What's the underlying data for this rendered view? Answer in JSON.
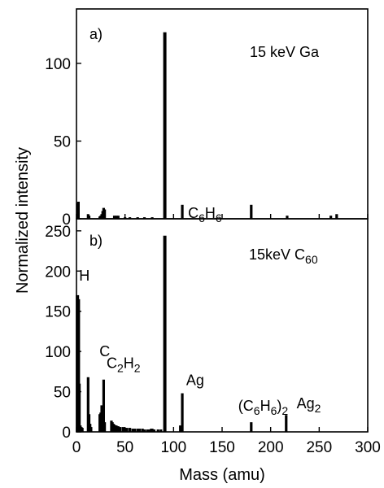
{
  "chart_data": [
    {
      "type": "bar",
      "panel_label": "a)",
      "annotation": "15 keV Ga",
      "xlabel": "Mass (amu)",
      "ylabel": "Normalized intensity",
      "xlim": [
        0,
        300
      ],
      "ylim": [
        0,
        135
      ],
      "yticks": [
        0,
        50,
        100
      ],
      "xticks": [
        0,
        50,
        100,
        150,
        200,
        250,
        300
      ],
      "grid": false,
      "x": [
        1,
        2,
        12,
        13,
        24,
        25,
        26,
        27,
        28,
        29,
        39,
        41,
        43,
        50,
        55,
        63,
        70,
        78,
        91,
        109,
        180,
        217,
        262,
        268
      ],
      "values": [
        10,
        11,
        3,
        2,
        1.5,
        2,
        3,
        5,
        7,
        6,
        2,
        2,
        2,
        1,
        1,
        1,
        1,
        1,
        120,
        9,
        9,
        2,
        2,
        3
      ],
      "peak_labels": []
    },
    {
      "type": "bar",
      "panel_label": "b)",
      "annotation_text": "15keV C",
      "annotation_sub": "60",
      "xlabel": "Mass (amu)",
      "ylabel": "Normalized intensity",
      "xlim": [
        0,
        300
      ],
      "ylim": [
        0,
        265
      ],
      "yticks": [
        0,
        50,
        100,
        150,
        200,
        250
      ],
      "xticks": [
        0,
        50,
        100,
        150,
        200,
        250,
        300
      ],
      "grid": false,
      "x": [
        1,
        2,
        3,
        4,
        5,
        6,
        12,
        13,
        14,
        15,
        24,
        25,
        26,
        27,
        28,
        29,
        36,
        37,
        38,
        39,
        40,
        41,
        42,
        43,
        45,
        48,
        50,
        52,
        55,
        58,
        60,
        63,
        65,
        68,
        70,
        73,
        75,
        77,
        78,
        80,
        84,
        87,
        91,
        107,
        109,
        180,
        216
      ],
      "values": [
        170,
        165,
        60,
        8,
        6,
        5,
        68,
        22,
        10,
        6,
        22,
        24,
        33,
        32,
        65,
        12,
        14,
        12,
        10,
        9,
        8,
        8,
        7,
        7,
        6,
        6,
        5,
        5,
        5,
        4,
        4,
        4,
        4,
        4,
        3,
        3,
        3,
        4,
        4,
        3,
        3,
        3,
        244,
        8,
        48,
        12,
        21
      ],
      "peak_labels": [
        {
          "x": 1,
          "y": 170,
          "main": "H",
          "parts": []
        },
        {
          "x": 12,
          "y": 68,
          "main": "C",
          "parts": []
        },
        {
          "x": 26,
          "y": 65,
          "main": "",
          "parts": [
            [
              "C",
              ""
            ],
            [
              "2",
              "sub"
            ],
            [
              "H",
              ""
            ],
            [
              "2",
              "sub"
            ]
          ]
        },
        {
          "x": 78,
          "y": 244,
          "main": "",
          "parts": [
            [
              "C",
              ""
            ],
            [
              "6",
              "sub"
            ],
            [
              "H",
              ""
            ],
            [
              "6",
              "sub"
            ]
          ]
        },
        {
          "x": 108,
          "y": 48,
          "main": "Ag",
          "parts": []
        },
        {
          "x": 180,
          "y": 12,
          "main": "",
          "parts": [
            [
              "(C",
              ""
            ],
            [
              "6",
              "sub"
            ],
            [
              "H",
              ""
            ],
            [
              "6",
              "sub"
            ],
            [
              ")",
              ""
            ],
            [
              "2",
              "sub"
            ]
          ]
        },
        {
          "x": 215,
          "y": 21,
          "main": "",
          "parts": [
            [
              "Ag",
              ""
            ],
            [
              "2",
              "sub"
            ]
          ]
        }
      ]
    }
  ]
}
